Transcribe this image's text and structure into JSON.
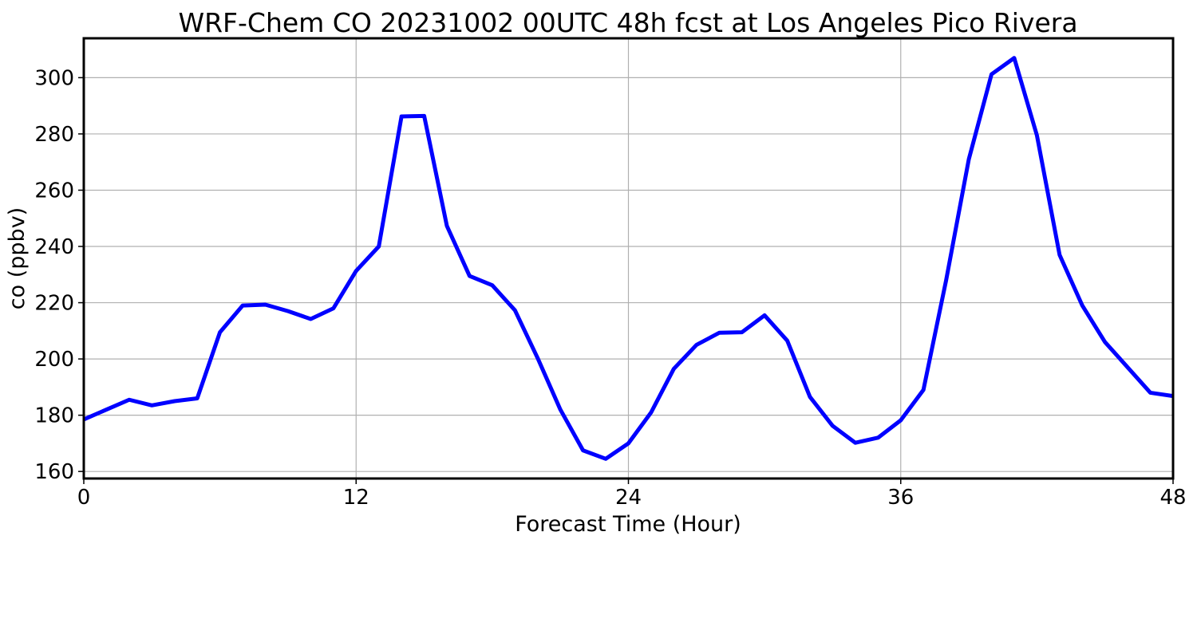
{
  "chart_data": {
    "type": "line",
    "title": "WRF-Chem CO  20231002 00UTC 48h fcst at Los Angeles Pico Rivera",
    "xlabel": "Forecast Time (Hour)",
    "ylabel": "co  (ppbv)",
    "xlim": [
      0,
      48
    ],
    "ylim": [
      157.5,
      314
    ],
    "x_ticks": [
      0,
      12,
      24,
      36,
      48
    ],
    "y_ticks": [
      160,
      180,
      200,
      220,
      240,
      260,
      280,
      300
    ],
    "grid": true,
    "line_color": "#0000ff",
    "series": [
      {
        "x": [
          0,
          1,
          2,
          3,
          4,
          5,
          6,
          7,
          8,
          9,
          10,
          11,
          12,
          13,
          14,
          15,
          16,
          17,
          18,
          19,
          20,
          21,
          22,
          23,
          24,
          25,
          26,
          27,
          28,
          29,
          30,
          31,
          32,
          33,
          34,
          35,
          36,
          37,
          38,
          39,
          40,
          41,
          42,
          43,
          44,
          45,
          46,
          47,
          48
        ],
        "values": [
          178.5,
          182,
          185.5,
          183.5,
          185,
          186,
          209.5,
          219,
          219.3,
          217,
          214.2,
          218,
          231.3,
          240,
          286.2,
          286.4,
          247.3,
          229.5,
          226.2,
          217.3,
          200.3,
          182,
          167.5,
          164.5,
          170,
          181,
          196.5,
          205,
          209.3,
          209.5,
          215.5,
          206.5,
          186.5,
          176.2,
          170.2,
          172,
          178.2,
          189,
          228,
          271,
          301.2,
          307,
          279.5,
          237,
          219,
          206,
          197,
          188,
          186.8
        ]
      }
    ]
  }
}
